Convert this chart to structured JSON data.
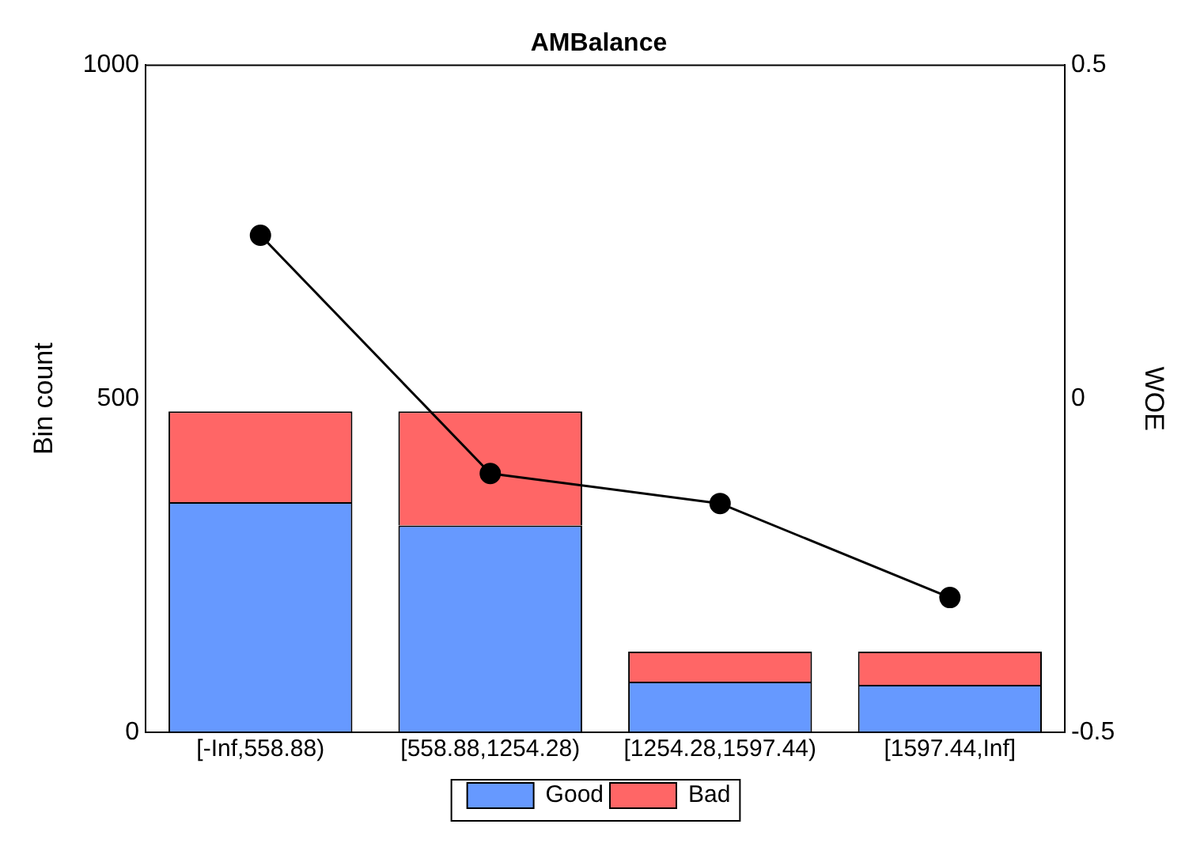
{
  "chart_data": {
    "type": "bar",
    "title": "AMBalance",
    "ylabel": "Bin count",
    "y2label": "WOE",
    "categories": [
      "[-Inf,558.88)",
      "[558.88,1254.28)",
      "[1254.28,1597.44)",
      "[1597.44,Inf]"
    ],
    "stacked": true,
    "series": [
      {
        "name": "Good",
        "color": "#6699ff",
        "values": [
          345,
          310,
          76,
          71
        ]
      },
      {
        "name": "Bad",
        "color": "#ff6666",
        "values": [
          136,
          171,
          45,
          50
        ]
      },
      {
        "type": "line",
        "axis": "y2",
        "color": "#000000",
        "values": [
          0.245,
          -0.112,
          -0.157,
          -0.298
        ]
      }
    ],
    "ylim": [
      0,
      1000
    ],
    "yticks": [
      0,
      500,
      1000
    ],
    "y2lim": [
      -0.5,
      0.5
    ],
    "y2ticks": [
      -0.5,
      0,
      0.5
    ],
    "grid": false,
    "legend": "bottom",
    "marker": "circle",
    "line_style": "solid"
  }
}
